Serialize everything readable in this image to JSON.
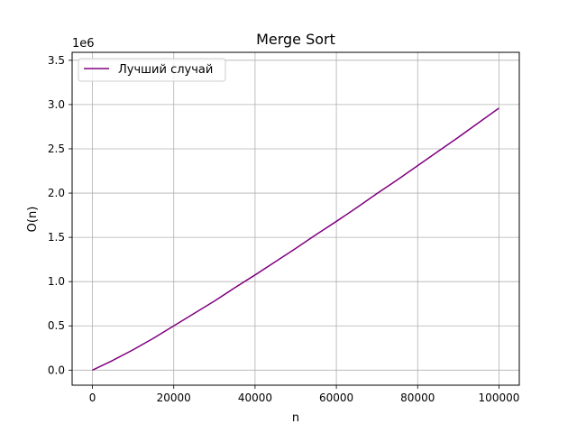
{
  "chart_data": {
    "type": "line",
    "title": "Merge Sort",
    "xlabel": "n",
    "ylabel": "O(n)",
    "y_offset_label": "1e6",
    "xlim": [
      -5000,
      105000
    ],
    "ylim": [
      -170000,
      3590000
    ],
    "x_ticks": [
      0,
      20000,
      40000,
      60000,
      80000,
      100000
    ],
    "x_tick_labels": [
      "0",
      "20000",
      "40000",
      "60000",
      "80000",
      "100000"
    ],
    "y_ticks": [
      0,
      500000,
      1000000,
      1500000,
      2000000,
      2500000,
      3000000,
      3500000
    ],
    "y_tick_labels": [
      "0.0",
      "0.5",
      "1.0",
      "1.5",
      "2.0",
      "2.5",
      "3.0",
      "3.5"
    ],
    "grid": true,
    "legend_position": "top-left",
    "series": [
      {
        "name": "Лучший случай",
        "color": "#800080",
        "x": [
          1,
          5000,
          10000,
          15000,
          20000,
          25000,
          30000,
          35000,
          40000,
          45000,
          50000,
          55000,
          60000,
          65000,
          70000,
          75000,
          80000,
          85000,
          90000,
          95000,
          100000
        ],
        "y": [
          0,
          110000,
          230000,
          360000,
          500000,
          640000,
          780000,
          930000,
          1075000,
          1225000,
          1375000,
          1530000,
          1680000,
          1835000,
          1995000,
          2150000,
          2310000,
          2470000,
          2630000,
          2795000,
          2960000
        ]
      }
    ]
  }
}
